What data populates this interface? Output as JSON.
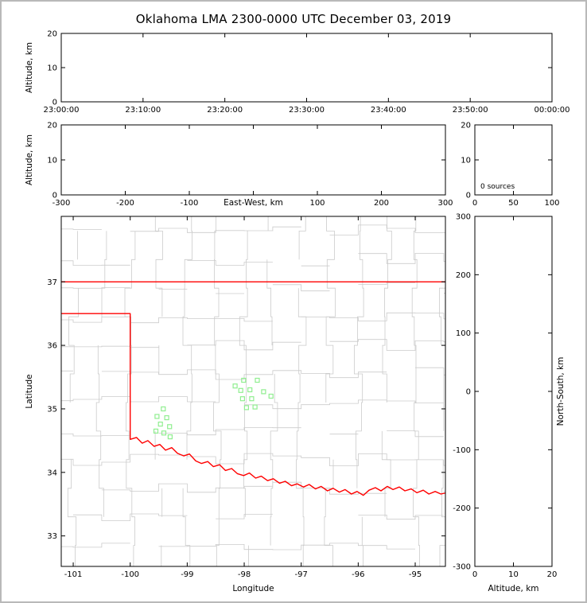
{
  "title": "Oklahoma LMA 2300-0000 UTC December 03, 2019",
  "colors": {
    "axis": "#000000",
    "county": "#cbcbcb",
    "state_border": "#ff0000",
    "station": "#90ee90",
    "frame": "#b9b9b9",
    "background": "#ffffff"
  },
  "panels": {
    "time_height": {
      "ylabel": "Altitude, km",
      "ylim": [
        0,
        20
      ],
      "yticks": [
        0,
        10,
        20
      ],
      "xtick_labels": [
        "23:00:00",
        "23:10:00",
        "23:20:00",
        "23:30:00",
        "23:40:00",
        "23:50:00",
        "00:00:00"
      ]
    },
    "ew_height": {
      "xlabel": "East-West, km",
      "ylabel": "Altitude, km",
      "xlim": [
        -300,
        300
      ],
      "xticks": [
        -300,
        -200,
        -100,
        0,
        100,
        200,
        300
      ],
      "xtick_labels": [
        "-300",
        "-200",
        "-100",
        "",
        "100",
        "200",
        "300"
      ],
      "ylim": [
        0,
        20
      ],
      "yticks": [
        0,
        10,
        20
      ]
    },
    "alt_hist": {
      "annotation": "0 sources",
      "xlim": [
        0,
        100
      ],
      "xticks": [
        0,
        50,
        100
      ],
      "xtick_labels": [
        "0",
        "50",
        "100"
      ],
      "ylim": [
        0,
        20
      ],
      "yticks": [
        0,
        10,
        20
      ]
    },
    "map": {
      "xlabel": "Longitude",
      "ylabel": "Latitude",
      "xlim": [
        -101.21,
        -94.47
      ],
      "xticks": [
        -101,
        -100,
        -99,
        -98,
        -97,
        -96,
        -95
      ],
      "xtick_labels": [
        "-101",
        "-100",
        "-99",
        "-98",
        "-97",
        "-96",
        "-95"
      ],
      "ylim": [
        32.52,
        38.03
      ],
      "yticks": [
        33,
        34,
        35,
        36,
        37
      ]
    },
    "ns_height": {
      "xlabel": "Altitude, km",
      "ylabel": "North-South, km",
      "xlim": [
        0,
        20
      ],
      "xticks": [
        0,
        10,
        20
      ],
      "xtick_labels": [
        "0",
        "10",
        "20"
      ],
      "ylim": [
        -300,
        300
      ],
      "yticks": [
        300,
        200,
        100,
        0,
        -100,
        -200,
        -300
      ]
    }
  },
  "chart_data": [
    {
      "panel": "time_height",
      "type": "scatter",
      "x": [],
      "y": [],
      "note": "no VHF sources plotted in this period"
    },
    {
      "panel": "ew_height",
      "type": "scatter",
      "x": [],
      "y": []
    },
    {
      "panel": "alt_hist",
      "type": "line",
      "x": [],
      "y": [],
      "annotation": "0 sources"
    },
    {
      "panel": "ns_height",
      "type": "scatter",
      "x": [],
      "y": []
    },
    {
      "panel": "map",
      "type": "map",
      "stations_lon_lat": [
        [
          -99.42,
          35.0
        ],
        [
          -99.53,
          34.88
        ],
        [
          -99.36,
          34.86
        ],
        [
          -99.47,
          34.76
        ],
        [
          -99.31,
          34.72
        ],
        [
          -99.55,
          34.65
        ],
        [
          -99.41,
          34.62
        ],
        [
          -99.3,
          34.56
        ],
        [
          -98.16,
          35.36
        ],
        [
          -98.01,
          35.45
        ],
        [
          -97.77,
          35.45
        ],
        [
          -98.06,
          35.29
        ],
        [
          -97.9,
          35.3
        ],
        [
          -97.66,
          35.27
        ],
        [
          -98.03,
          35.16
        ],
        [
          -97.87,
          35.16
        ],
        [
          -97.53,
          35.2
        ],
        [
          -97.96,
          35.02
        ],
        [
          -97.81,
          35.03
        ]
      ],
      "state_border": [
        [
          [
            -101.21,
            37.0
          ],
          [
            -94.45,
            37.0
          ]
        ],
        [
          [
            -101.21,
            36.5
          ],
          [
            -100.0,
            36.5
          ],
          [
            -100.0,
            34.52
          ],
          [
            -99.89,
            34.55
          ],
          [
            -99.79,
            34.46
          ],
          [
            -99.69,
            34.5
          ],
          [
            -99.58,
            34.41
          ],
          [
            -99.48,
            34.44
          ],
          [
            -99.38,
            34.35
          ],
          [
            -99.27,
            34.39
          ],
          [
            -99.17,
            34.3
          ],
          [
            -99.06,
            34.26
          ],
          [
            -98.96,
            34.29
          ],
          [
            -98.85,
            34.18
          ],
          [
            -98.75,
            34.14
          ],
          [
            -98.64,
            34.17
          ],
          [
            -98.54,
            34.09
          ],
          [
            -98.43,
            34.12
          ],
          [
            -98.33,
            34.03
          ],
          [
            -98.22,
            34.06
          ],
          [
            -98.12,
            33.98
          ],
          [
            -98.01,
            33.95
          ],
          [
            -97.91,
            33.99
          ],
          [
            -97.8,
            33.91
          ],
          [
            -97.7,
            33.94
          ],
          [
            -97.59,
            33.87
          ],
          [
            -97.49,
            33.9
          ],
          [
            -97.38,
            33.83
          ],
          [
            -97.28,
            33.86
          ],
          [
            -97.17,
            33.79
          ],
          [
            -97.07,
            33.82
          ],
          [
            -96.96,
            33.77
          ],
          [
            -96.86,
            33.81
          ],
          [
            -96.75,
            33.74
          ],
          [
            -96.65,
            33.78
          ],
          [
            -96.54,
            33.71
          ],
          [
            -96.44,
            33.75
          ],
          [
            -96.33,
            33.69
          ],
          [
            -96.23,
            33.73
          ],
          [
            -96.12,
            33.66
          ],
          [
            -96.02,
            33.7
          ],
          [
            -95.91,
            33.64
          ],
          [
            -95.81,
            33.72
          ],
          [
            -95.7,
            33.76
          ],
          [
            -95.6,
            33.71
          ],
          [
            -95.49,
            33.78
          ],
          [
            -95.39,
            33.73
          ],
          [
            -95.28,
            33.77
          ],
          [
            -95.18,
            33.71
          ],
          [
            -95.07,
            33.74
          ],
          [
            -94.97,
            33.68
          ],
          [
            -94.86,
            33.72
          ],
          [
            -94.76,
            33.66
          ],
          [
            -94.65,
            33.7
          ],
          [
            -94.55,
            33.66
          ],
          [
            -94.45,
            33.68
          ]
        ]
      ],
      "counties": {
        "cell_lon": 0.5,
        "cell_lat": 0.45,
        "jitter": 0.1,
        "skip": 0.12,
        "seed": 20191203
      }
    }
  ]
}
